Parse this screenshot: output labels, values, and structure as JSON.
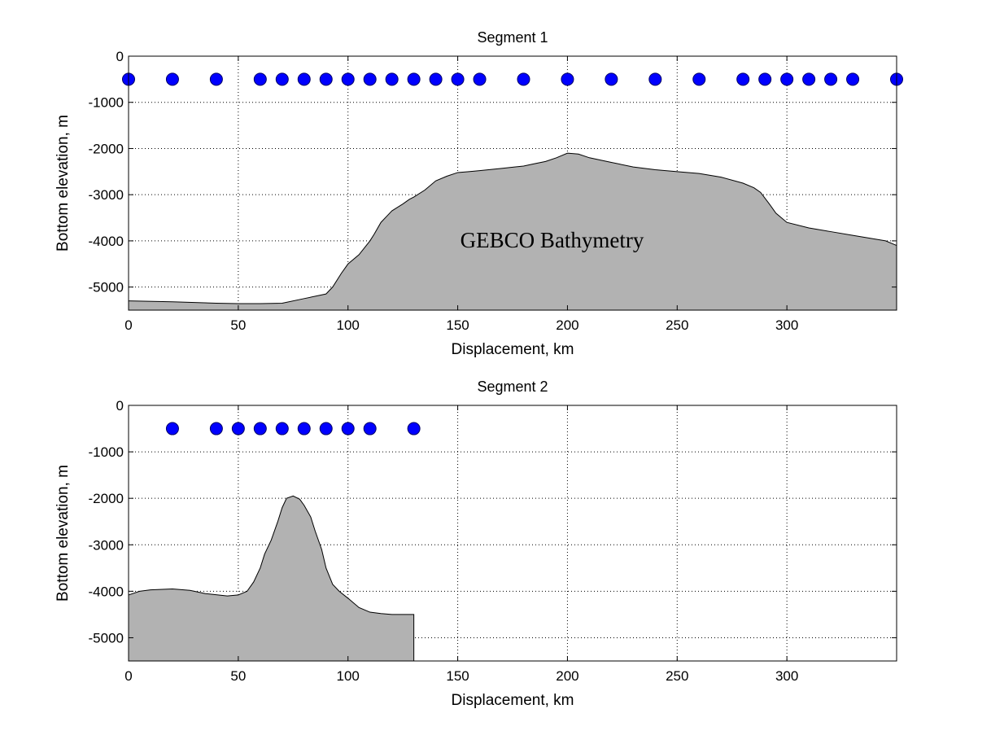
{
  "colors": {
    "terrain_fill": "#b2b2b2",
    "terrain_edge": "#000000",
    "marker_fill": "#0000ff",
    "marker_edge": "#000066",
    "background": "#ffffff"
  },
  "chart_data": [
    {
      "type": "area",
      "title": "Segment 1",
      "xlabel": "Displacement, km",
      "ylabel": "Bottom elevation, m",
      "xlim": [
        0,
        350
      ],
      "ylim": [
        -5500,
        0
      ],
      "xticks": [
        0,
        50,
        100,
        150,
        200,
        250,
        300
      ],
      "yticks": [
        0,
        -1000,
        -2000,
        -3000,
        -4000,
        -5000
      ],
      "grid": true,
      "annotation": {
        "text": "GEBCO Bathymetry",
        "x": 193,
        "y": -4000
      },
      "series": [
        {
          "kind": "area",
          "x": [
            0,
            20,
            40,
            50,
            60,
            70,
            80,
            90,
            93,
            97,
            100,
            105,
            110,
            112,
            115,
            118,
            120,
            125,
            128,
            130,
            135,
            140,
            145,
            150,
            155,
            160,
            170,
            180,
            185,
            190,
            195,
            200,
            205,
            210,
            220,
            230,
            240,
            250,
            260,
            270,
            280,
            285,
            288,
            292,
            295,
            300,
            310,
            320,
            330,
            340,
            345,
            350
          ],
          "y": [
            -5300,
            -5320,
            -5350,
            -5360,
            -5360,
            -5350,
            -5250,
            -5150,
            -5000,
            -4700,
            -4500,
            -4300,
            -4000,
            -3850,
            -3600,
            -3450,
            -3350,
            -3200,
            -3100,
            -3050,
            -2900,
            -2700,
            -2600,
            -2520,
            -2500,
            -2480,
            -2430,
            -2380,
            -2330,
            -2280,
            -2200,
            -2100,
            -2120,
            -2200,
            -2300,
            -2400,
            -2460,
            -2500,
            -2540,
            -2620,
            -2750,
            -2850,
            -2950,
            -3200,
            -3400,
            -3600,
            -3720,
            -3800,
            -3880,
            -3960,
            -4000,
            -4100
          ]
        },
        {
          "kind": "scatter",
          "x": [
            0,
            20,
            40,
            60,
            70,
            80,
            90,
            100,
            110,
            120,
            130,
            140,
            150,
            160,
            180,
            200,
            220,
            240,
            260,
            280,
            290,
            300,
            310,
            320,
            330,
            350
          ],
          "y": [
            -500,
            -500,
            -500,
            -500,
            -500,
            -500,
            -500,
            -500,
            -500,
            -500,
            -500,
            -500,
            -500,
            -500,
            -500,
            -500,
            -500,
            -500,
            -500,
            -500,
            -500,
            -500,
            -500,
            -500,
            -500,
            -500
          ]
        }
      ]
    },
    {
      "type": "area",
      "title": "Segment 2",
      "xlabel": "Displacement, km",
      "ylabel": "Bottom elevation, m",
      "xlim": [
        0,
        350
      ],
      "ylim": [
        -5500,
        0
      ],
      "xticks": [
        0,
        50,
        100,
        150,
        200,
        250,
        300
      ],
      "yticks": [
        0,
        -1000,
        -2000,
        -3000,
        -4000,
        -5000
      ],
      "grid": true,
      "series": [
        {
          "kind": "area",
          "x": [
            0,
            5,
            10,
            20,
            28,
            35,
            45,
            50,
            54,
            57,
            60,
            62,
            65,
            68,
            70,
            72,
            75,
            78,
            80,
            83,
            85,
            88,
            90,
            93,
            96,
            100,
            105,
            110,
            115,
            120,
            125,
            130
          ],
          "y": [
            -4080,
            -4000,
            -3970,
            -3950,
            -3980,
            -4050,
            -4100,
            -4080,
            -4000,
            -3800,
            -3500,
            -3200,
            -2900,
            -2500,
            -2200,
            -2000,
            -1950,
            -2020,
            -2150,
            -2400,
            -2700,
            -3100,
            -3500,
            -3850,
            -4000,
            -4150,
            -4350,
            -4450,
            -4480,
            -4500,
            -4500,
            -4500
          ]
        },
        {
          "kind": "scatter",
          "x": [
            20,
            40,
            50,
            60,
            70,
            80,
            90,
            100,
            110,
            130
          ],
          "y": [
            -500,
            -500,
            -500,
            -500,
            -500,
            -500,
            -500,
            -500,
            -500,
            -500
          ]
        }
      ]
    }
  ]
}
